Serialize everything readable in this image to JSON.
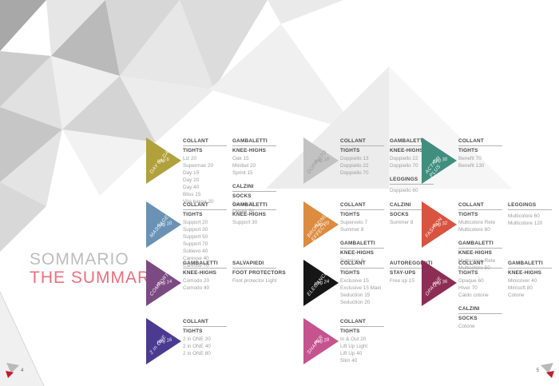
{
  "title": {
    "sommario": "SOMMARIO",
    "the_summary": "THE SUMMARY"
  },
  "footer": {
    "left_page": "4",
    "right_page": "5"
  },
  "accent_colors": {
    "title_pink": "#ec6e7e",
    "marker_red": "#c21b2a",
    "marker_gray": "#b9b9b9"
  },
  "sections": [
    {
      "label": "DAY by DAY",
      "page": "pag 6",
      "color": "#b1a13c",
      "col": 1,
      "row": 1,
      "columns": [
        [
          {
            "title_it": "COLLANT",
            "title_en": "TIGHTS",
            "items": [
              "Liz 20",
              "Supermax 20",
              "Day 15",
              "Day 20",
              "Day 40",
              "Bliss 15",
              "Vita bassa 20"
            ]
          }
        ],
        [
          {
            "title_it": "GAMBALETTI",
            "title_en": "KNEE-HIGHS",
            "items": [
              "Oak 15",
              "Minibel 20",
              "Sprint 15"
            ]
          },
          {
            "title_it": "CALZINI",
            "title_en": "SOCKS",
            "items": [
              "Desirè 20",
              "Desirè 50"
            ]
          }
        ]
      ]
    },
    {
      "label": "MASSAGE",
      "page": "pag 10",
      "color": "#6a92b5",
      "col": 1,
      "row": 2,
      "columns": [
        [
          {
            "title_it": "COLLANT",
            "title_en": "TIGHTS",
            "items": [
              "Support 20",
              "Support 30",
              "Support 50",
              "Support 70",
              "Sollievo 40",
              "Caresse 40",
              "Caresse 70"
            ]
          }
        ],
        [
          {
            "title_it": "GAMBALETTI",
            "title_en": "KNEE-HIGHS",
            "items": [
              "Support 30"
            ]
          }
        ]
      ]
    },
    {
      "label": "COMFORT",
      "page": "pag 14",
      "color": "#7c4a82",
      "col": 1,
      "row": 3,
      "columns": [
        [
          {
            "title_it": "GAMBALETTI",
            "title_en": "KNEE-HIGHS",
            "items": [
              "Comodo 20",
              "Comodo 40"
            ]
          }
        ],
        [
          {
            "title_it": "SALVAPIEDI",
            "title_en": "FOOT PROTECTORS",
            "items": [
              "Foot protector Light"
            ]
          }
        ]
      ]
    },
    {
      "label": "2 in ONE",
      "page": "pag 16",
      "color": "#4a3a90",
      "col": 1,
      "row": 4,
      "columns": [
        [
          {
            "title_it": "COLLANT",
            "title_en": "TIGHTS",
            "items": [
              "2 in ONE 20",
              "2 in ONE 40",
              "2 in ONE 80"
            ]
          }
        ]
      ]
    },
    {
      "label": "DOPPIATO",
      "page": "pag 18",
      "color": "#c3c2c2",
      "label_color": "#9a9a9a",
      "col": 2,
      "row": 1,
      "columns": [
        [
          {
            "title_it": "COLLANT",
            "title_en": "TIGHTS",
            "items": [
              "Doppiello 13",
              "Doppiello 22",
              "Doppiello 70"
            ]
          }
        ],
        [
          {
            "title_it": "GAMBALETTI",
            "title_en": "KNEE-HIGHS",
            "items": [
              "Doppiello 22",
              "Doppiello 70"
            ]
          },
          {
            "title_it": "LEGGINGS",
            "title_en": "",
            "items": [
              "Doppiello 60"
            ]
          }
        ]
      ]
    },
    {
      "label": "BRONZING\nEFFECT",
      "page": "pag 20",
      "color": "#dc8b3f",
      "col": 2,
      "row": 2,
      "columns": [
        [
          {
            "title_it": "COLLANT",
            "title_en": "TIGHTS",
            "items": [
              "Supervelo 7",
              "Summer 8"
            ]
          },
          {
            "title_it": "GAMBALETTI",
            "title_en": "KNEE-HIGHS",
            "items": [
              "Summer 8"
            ]
          }
        ],
        [
          {
            "title_it": "CALZINI",
            "title_en": "SOCKS",
            "items": [
              "Summer 8"
            ]
          }
        ]
      ]
    },
    {
      "label": "ELEGANCE",
      "page": "pag 24",
      "color": "#161616",
      "col": 2,
      "row": 3,
      "columns": [
        [
          {
            "title_it": "COLLANT",
            "title_en": "TIGHTS",
            "items": [
              "Exclusive 15",
              "Exclusive 15 Maxi",
              "Seduction 15",
              "Seduction 20"
            ]
          }
        ],
        [
          {
            "title_it": "AUTOREGGENTI",
            "title_en": "STAY-UPS",
            "items": [
              "Free up 15"
            ]
          }
        ]
      ]
    },
    {
      "label": "SHAPER",
      "page": "pag 28",
      "color": "#c5538f",
      "col": 2,
      "row": 4,
      "columns": [
        [
          {
            "title_it": "COLLANT",
            "title_en": "TIGHTS",
            "items": [
              "In & Out 20",
              "Lift Up Light",
              "Lift Up 40",
              "Slim 40"
            ]
          }
        ]
      ]
    },
    {
      "label": "ACTION\nPLUS",
      "page": "pag 30",
      "color": "#3f8e7e",
      "col": 3,
      "row": 1,
      "columns": [
        [
          {
            "title_it": "COLLANT",
            "title_en": "TIGHTS",
            "items": [
              "Benefit 70",
              "Benefit 130"
            ]
          }
        ]
      ]
    },
    {
      "label": "FASHION",
      "page": "pag 32",
      "color": "#d85340",
      "col": 3,
      "row": 2,
      "columns": [
        [
          {
            "title_it": "COLLANT",
            "title_en": "TIGHTS",
            "items": [
              "Multicolore Rete",
              "Multicolore 60"
            ]
          },
          {
            "title_it": "GAMBALETTI",
            "title_en": "KNEE-HIGHS",
            "items": [
              "Multicolore Rete",
              "Multicolore 50"
            ]
          }
        ],
        [
          {
            "title_it": "LEGGINGS",
            "title_en": "",
            "items": [
              "Multicolore 60",
              "Multicolore 120"
            ]
          }
        ]
      ]
    },
    {
      "label": "OPAQUE",
      "page": "pag 36",
      "color": "#8d2c55",
      "col": 3,
      "row": 3,
      "columns": [
        [
          {
            "title_it": "COLLANT",
            "title_en": "TIGHTS",
            "items": [
              "Opaque 60",
              "Hiver 70",
              "Caldo cotone"
            ]
          },
          {
            "title_it": "CALZINI",
            "title_en": "SOCKS",
            "items": [
              "Cotone"
            ]
          }
        ],
        [
          {
            "title_it": "GAMBALETTI",
            "title_en": "KNEE-HIGHS",
            "items": [
              "Minicover 40",
              "Minisoft 80",
              "Cotone"
            ]
          }
        ]
      ]
    }
  ]
}
